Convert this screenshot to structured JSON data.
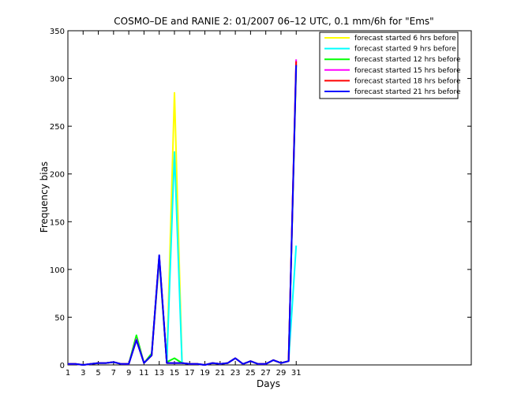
{
  "chart_data": {
    "type": "line",
    "title": "COSMO–DE and RANIE 2: 01/2007 06–12 UTC, 0.1 mm/6h for \"Ems\"",
    "xlabel": "Days",
    "ylabel": "Frequency bias",
    "xlim": [
      1,
      54
    ],
    "ylim": [
      0,
      350
    ],
    "xticks": [
      1,
      3,
      5,
      7,
      9,
      11,
      13,
      15,
      17,
      19,
      21,
      23,
      25,
      27,
      29,
      31
    ],
    "yticks": [
      0,
      50,
      100,
      150,
      200,
      250,
      300,
      350
    ],
    "grid": false,
    "legend_position": "top-right",
    "x": [
      1,
      2,
      3,
      4,
      5,
      6,
      7,
      8,
      9,
      10,
      11,
      12,
      13,
      14,
      15,
      16,
      17,
      18,
      19,
      20,
      21,
      22,
      23,
      24,
      25,
      26,
      27,
      28,
      29,
      30,
      31
    ],
    "series": [
      {
        "name": "forecast started 6 hrs before",
        "color": "#ffff00",
        "values": [
          1,
          1,
          0,
          1,
          2,
          2,
          3,
          1,
          1,
          28,
          2,
          10,
          110,
          2,
          285,
          2,
          1,
          1,
          0,
          2,
          1,
          2,
          7,
          1,
          4,
          1,
          1,
          5,
          2,
          4,
          310
        ]
      },
      {
        "name": "forecast started 9 hrs before",
        "color": "#00ffff",
        "values": [
          1,
          1,
          0,
          1,
          2,
          2,
          3,
          1,
          1,
          28,
          2,
          10,
          110,
          2,
          223,
          2,
          1,
          1,
          0,
          2,
          1,
          2,
          7,
          1,
          4,
          1,
          1,
          5,
          2,
          4,
          125
        ]
      },
      {
        "name": "forecast started 12 hrs before",
        "color": "#00ff00",
        "values": [
          1,
          1,
          0,
          1,
          2,
          2,
          3,
          1,
          1,
          31,
          2,
          12,
          112,
          3,
          7,
          2,
          1,
          1,
          0,
          2,
          1,
          2,
          7,
          1,
          4,
          1,
          1,
          5,
          2,
          4,
          315
        ]
      },
      {
        "name": "forecast started 15 hrs before",
        "color": "#ff00ff",
        "values": [
          1,
          1,
          0,
          1,
          2,
          2,
          3,
          1,
          1,
          27,
          2,
          10,
          114,
          2,
          2,
          2,
          1,
          1,
          0,
          2,
          1,
          2,
          7,
          1,
          4,
          1,
          1,
          5,
          2,
          4,
          320
        ]
      },
      {
        "name": "forecast started 18 hrs before",
        "color": "#ff0000",
        "values": [
          1,
          1,
          0,
          1,
          2,
          2,
          3,
          1,
          1,
          26,
          2,
          10,
          114,
          2,
          2,
          2,
          1,
          1,
          0,
          2,
          1,
          2,
          7,
          1,
          4,
          1,
          1,
          5,
          2,
          4,
          318
        ]
      },
      {
        "name": "forecast started 21 hrs before",
        "color": "#0000ff",
        "values": [
          1,
          1,
          0,
          1,
          2,
          2,
          3,
          1,
          1,
          26,
          2,
          10,
          115,
          2,
          2,
          2,
          1,
          1,
          0,
          2,
          1,
          2,
          7,
          1,
          4,
          1,
          1,
          5,
          2,
          4,
          314
        ]
      }
    ]
  }
}
